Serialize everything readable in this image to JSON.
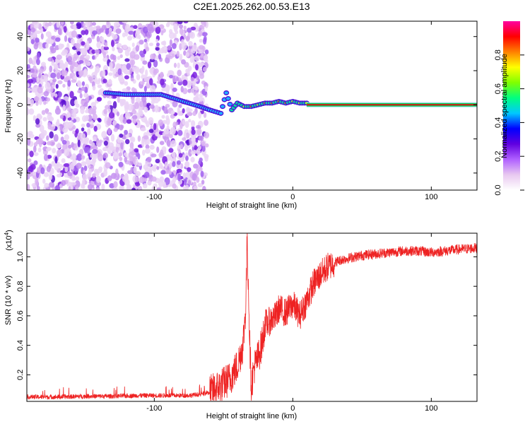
{
  "title": "C2E1.2025.262.00.53.E13",
  "chart_data": [
    {
      "type": "heatmap",
      "xlabel": "Height of straight line (km)",
      "ylabel": "Frequency (Hz)",
      "xlim": [
        -192,
        133
      ],
      "ylim": [
        -50,
        49
      ],
      "xticks": [
        -100,
        0,
        100
      ],
      "xtick_labels": [
        "-100",
        "0",
        "100"
      ],
      "yticks": [
        -40,
        -20,
        0,
        20,
        40
      ],
      "ytick_labels": [
        "-40",
        "-20",
        "0",
        "20",
        "40"
      ],
      "colorbar": {
        "label": "Normalized spectral amplitude",
        "range": [
          0.0,
          1.0
        ],
        "ticks": [
          0.0,
          0.2,
          0.4,
          0.6,
          0.8
        ],
        "tick_labels": [
          "0.0",
          "0.2",
          "0.4",
          "0.6",
          "0.8"
        ],
        "colormap": [
          "#ffffff",
          "#e8c8f0",
          "#b060ff",
          "#6000e0",
          "#0000ff",
          "#00c8ff",
          "#00ff80",
          "#80ff00",
          "#ffff00",
          "#ff8000",
          "#ff0000",
          "#ff00a0"
        ]
      },
      "noise_region": {
        "x": [
          -192,
          -62
        ],
        "y": [
          -50,
          49
        ]
      },
      "signal_trace": {
        "x": [
          -135,
          -120,
          -105,
          -95,
          -67,
          -60,
          -52,
          -48,
          -44,
          -40,
          -35,
          -30,
          -25,
          -20,
          -15,
          -10,
          -5,
          0,
          5,
          10,
          20,
          40,
          60,
          80,
          100,
          133
        ],
        "y": [
          7,
          6,
          6,
          6,
          -1,
          -3,
          -5,
          7,
          -3,
          1,
          -1,
          -1,
          0,
          1,
          1,
          2,
          1,
          2,
          1,
          1,
          0,
          0,
          0,
          0,
          0,
          0
        ]
      }
    },
    {
      "type": "line",
      "xlabel": "Height of straight line (km)",
      "ylabel": "SNR (10 * v/v)",
      "scale_label": "(x10",
      "scale_exp": "4",
      "scale_close": ")",
      "xlim": [
        -192,
        133
      ],
      "ylim": [
        0.02,
        1.16
      ],
      "xticks": [
        -100,
        0,
        100
      ],
      "xtick_labels": [
        "-100",
        "0",
        "100"
      ],
      "yticks": [
        0.2,
        0.4,
        0.6,
        0.8,
        1.0
      ],
      "ytick_labels": [
        "0.2",
        "0.4",
        "0.6",
        "0.8",
        "1.0"
      ],
      "color": "#ee2222",
      "series": [
        {
          "x": [
            -192,
            -170,
            -150,
            -130,
            -110,
            -90,
            -75,
            -65,
            -60,
            -55,
            -50,
            -45,
            -40,
            -36,
            -34,
            -33,
            -32,
            -31,
            -30,
            -28,
            -25,
            -22,
            -20,
            -18,
            -15,
            -12,
            -10,
            -5,
            0,
            5,
            10,
            15,
            20,
            25,
            30,
            35,
            40,
            50,
            60,
            70,
            80,
            90,
            100,
            110,
            120,
            133
          ],
          "y": [
            0.05,
            0.05,
            0.055,
            0.055,
            0.06,
            0.06,
            0.06,
            0.07,
            0.08,
            0.11,
            0.14,
            0.18,
            0.26,
            0.4,
            0.65,
            1.1,
            0.8,
            0.4,
            0.12,
            0.25,
            0.32,
            0.42,
            0.55,
            0.55,
            0.58,
            0.6,
            0.65,
            0.62,
            0.68,
            0.6,
            0.7,
            0.82,
            0.88,
            0.93,
            0.96,
            0.98,
            0.99,
            1.01,
            1.02,
            1.03,
            1.04,
            1.04,
            1.03,
            1.04,
            1.05,
            1.06
          ]
        }
      ]
    }
  ]
}
